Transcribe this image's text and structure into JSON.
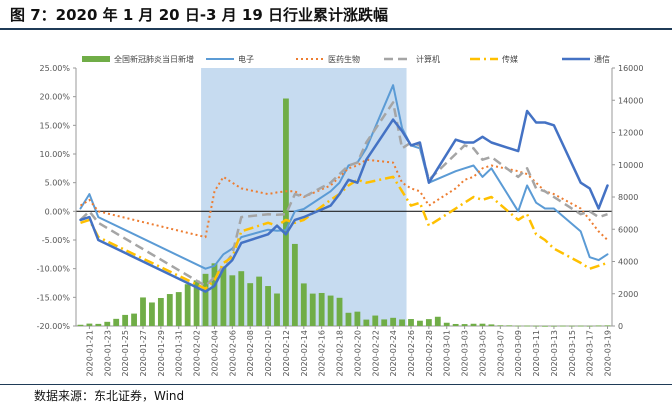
{
  "figure": {
    "title": "图 7：2020 年 1 月 20 日-3 月 19 日行业累计涨跌幅",
    "source": "数据来源：东北证券，Wind"
  },
  "chart_data": {
    "type": "line",
    "title": "图 7：2020 年 1 月 20 日-3 月 19 日行业累计涨跌幅",
    "x_tick_labels": [
      "2020-01-21",
      "2020-01-23",
      "2020-01-25",
      "2020-01-27",
      "2020-01-29",
      "2020-01-31",
      "2020-02-02",
      "2020-02-04",
      "2020-02-06",
      "2020-02-08",
      "2020-02-10",
      "2020-02-12",
      "2020-02-14",
      "2020-02-16",
      "2020-02-18",
      "2020-02-20",
      "2020-02-22",
      "2020-02-24",
      "2020-02-26",
      "2020-02-28",
      "2020-03-01",
      "2020-03-03",
      "2020-03-05",
      "2020-03-07",
      "2020-03-09",
      "2020-03-11",
      "2020-03-13",
      "2020-03-15",
      "2020-03-17",
      "2020-03-19"
    ],
    "x_start": "2020-01-20",
    "x_end": "2020-03-19",
    "y_left": {
      "ylim": [
        -20,
        25
      ],
      "ticks": [
        -20,
        -15,
        -10,
        -5,
        0,
        5,
        10,
        15,
        20,
        25
      ],
      "unit": "%"
    },
    "y_right": {
      "ylim": [
        0,
        16000
      ],
      "ticks": [
        0,
        2000,
        4000,
        6000,
        8000,
        10000,
        12000,
        14000,
        16000
      ]
    },
    "highlight": {
      "from": "2020-02-03",
      "to": "2020-02-25",
      "color": "#c6dbf0"
    },
    "bar_series": {
      "name": "全国新冠肺炎当日新增",
      "color": "#70ad47",
      "axis": "right",
      "points": [
        [
          "2020-01-20",
          77
        ],
        [
          "2020-01-21",
          149
        ],
        [
          "2020-01-22",
          131
        ],
        [
          "2020-01-23",
          259
        ],
        [
          "2020-01-24",
          444
        ],
        [
          "2020-01-25",
          688
        ],
        [
          "2020-01-26",
          769
        ],
        [
          "2020-01-27",
          1771
        ],
        [
          "2020-01-28",
          1459
        ],
        [
          "2020-01-29",
          1737
        ],
        [
          "2020-01-30",
          1982
        ],
        [
          "2020-01-31",
          2102
        ],
        [
          "2020-02-01",
          2590
        ],
        [
          "2020-02-02",
          2829
        ],
        [
          "2020-02-03",
          3235
        ],
        [
          "2020-02-04",
          3887
        ],
        [
          "2020-02-05",
          3694
        ],
        [
          "2020-02-06",
          3143
        ],
        [
          "2020-02-07",
          3399
        ],
        [
          "2020-02-08",
          2656
        ],
        [
          "2020-02-09",
          3062
        ],
        [
          "2020-02-10",
          2478
        ],
        [
          "2020-02-11",
          2015
        ],
        [
          "2020-02-12",
          14108
        ],
        [
          "2020-02-13",
          5090
        ],
        [
          "2020-02-14",
          2641
        ],
        [
          "2020-02-15",
          2009
        ],
        [
          "2020-02-16",
          2048
        ],
        [
          "2020-02-17",
          1886
        ],
        [
          "2020-02-18",
          1749
        ],
        [
          "2020-02-19",
          820
        ],
        [
          "2020-02-20",
          889
        ],
        [
          "2020-02-21",
          397
        ],
        [
          "2020-02-22",
          648
        ],
        [
          "2020-02-23",
          409
        ],
        [
          "2020-02-24",
          508
        ],
        [
          "2020-02-25",
          406
        ],
        [
          "2020-02-26",
          433
        ],
        [
          "2020-02-27",
          327
        ],
        [
          "2020-02-28",
          427
        ],
        [
          "2020-02-29",
          573
        ],
        [
          "2020-03-01",
          202
        ],
        [
          "2020-03-02",
          125
        ],
        [
          "2020-03-03",
          119
        ],
        [
          "2020-03-04",
          139
        ],
        [
          "2020-03-05",
          143
        ],
        [
          "2020-03-06",
          99
        ],
        [
          "2020-03-07",
          44
        ],
        [
          "2020-03-08",
          40
        ],
        [
          "2020-03-09",
          19
        ],
        [
          "2020-03-10",
          24
        ],
        [
          "2020-03-11",
          15
        ],
        [
          "2020-03-12",
          8
        ],
        [
          "2020-03-13",
          11
        ],
        [
          "2020-03-14",
          20
        ],
        [
          "2020-03-15",
          16
        ],
        [
          "2020-03-16",
          21
        ],
        [
          "2020-03-17",
          13
        ],
        [
          "2020-03-18",
          34
        ],
        [
          "2020-03-19",
          39
        ]
      ]
    },
    "line_series": [
      {
        "name": "电子",
        "color": "#5b9bd5",
        "dash": "",
        "width": 2,
        "points": [
          [
            "2020-01-20",
            0.5
          ],
          [
            "2020-01-21",
            3.0
          ],
          [
            "2020-01-22",
            -1.0
          ],
          [
            "2020-02-03",
            -10.0
          ],
          [
            "2020-02-04",
            -9.5
          ],
          [
            "2020-02-05",
            -7.5
          ],
          [
            "2020-02-06",
            -6.5
          ],
          [
            "2020-02-07",
            -4.5
          ],
          [
            "2020-02-10",
            -3.2
          ],
          [
            "2020-02-11",
            -3.4
          ],
          [
            "2020-02-12",
            -3.3
          ],
          [
            "2020-02-13",
            0.0
          ],
          [
            "2020-02-14",
            0.4
          ],
          [
            "2020-02-17",
            3.5
          ],
          [
            "2020-02-18",
            5.0
          ],
          [
            "2020-02-19",
            8.0
          ],
          [
            "2020-02-20",
            8.5
          ],
          [
            "2020-02-21",
            11.0
          ],
          [
            "2020-02-24",
            22.0
          ],
          [
            "2020-02-25",
            14.5
          ],
          [
            "2020-02-26",
            11.5
          ],
          [
            "2020-02-27",
            11.0
          ],
          [
            "2020-02-28",
            5.0
          ],
          [
            "2020-03-02",
            7.0
          ],
          [
            "2020-03-03",
            7.5
          ],
          [
            "2020-03-04",
            8.0
          ],
          [
            "2020-03-05",
            6.0
          ],
          [
            "2020-03-06",
            7.5
          ],
          [
            "2020-03-09",
            0.0
          ],
          [
            "2020-03-10",
            4.5
          ],
          [
            "2020-03-11",
            1.5
          ],
          [
            "2020-03-12",
            0.5
          ],
          [
            "2020-03-13",
            0.5
          ],
          [
            "2020-03-16",
            -3.5
          ],
          [
            "2020-03-17",
            -8.0
          ],
          [
            "2020-03-18",
            -8.5
          ],
          [
            "2020-03-19",
            -7.5
          ]
        ]
      },
      {
        "name": "医药生物",
        "color": "#ed7d31",
        "dash": "2 3",
        "width": 2,
        "points": [
          [
            "2020-01-20",
            1.0
          ],
          [
            "2020-01-21",
            2.0
          ],
          [
            "2020-01-22",
            0.0
          ],
          [
            "2020-02-03",
            -4.5
          ],
          [
            "2020-02-04",
            3.5
          ],
          [
            "2020-02-05",
            6.0
          ],
          [
            "2020-02-06",
            5.0
          ],
          [
            "2020-02-07",
            4.0
          ],
          [
            "2020-02-10",
            3.0
          ],
          [
            "2020-02-11",
            3.3
          ],
          [
            "2020-02-12",
            3.5
          ],
          [
            "2020-02-13",
            3.5
          ],
          [
            "2020-02-14",
            2.5
          ],
          [
            "2020-02-17",
            4.5
          ],
          [
            "2020-02-18",
            6.0
          ],
          [
            "2020-02-19",
            7.5
          ],
          [
            "2020-02-20",
            8.0
          ],
          [
            "2020-02-21",
            9.0
          ],
          [
            "2020-02-24",
            8.5
          ],
          [
            "2020-02-25",
            5.0
          ],
          [
            "2020-02-26",
            4.0
          ],
          [
            "2020-02-27",
            3.5
          ],
          [
            "2020-02-28",
            1.0
          ],
          [
            "2020-03-02",
            4.0
          ],
          [
            "2020-03-03",
            5.5
          ],
          [
            "2020-03-04",
            6.0
          ],
          [
            "2020-03-05",
            7.5
          ],
          [
            "2020-03-06",
            8.0
          ],
          [
            "2020-03-09",
            7.0
          ],
          [
            "2020-03-10",
            6.5
          ],
          [
            "2020-03-11",
            5.0
          ],
          [
            "2020-03-12",
            3.5
          ],
          [
            "2020-03-13",
            3.0
          ],
          [
            "2020-03-16",
            0.5
          ],
          [
            "2020-03-17",
            -1.5
          ],
          [
            "2020-03-18",
            -3.5
          ],
          [
            "2020-03-19",
            -5.0
          ]
        ]
      },
      {
        "name": "计算机",
        "color": "#a5a5a5",
        "dash": "9 5",
        "width": 2.5,
        "points": [
          [
            "2020-01-20",
            -1.5
          ],
          [
            "2020-01-21",
            0.0
          ],
          [
            "2020-01-22",
            -2.0
          ],
          [
            "2020-02-03",
            -13.0
          ],
          [
            "2020-02-04",
            -11.5
          ],
          [
            "2020-02-05",
            -9.5
          ],
          [
            "2020-02-06",
            -7.5
          ],
          [
            "2020-02-07",
            -1.0
          ],
          [
            "2020-02-10",
            -0.5
          ],
          [
            "2020-02-11",
            -0.6
          ],
          [
            "2020-02-12",
            -0.5
          ],
          [
            "2020-02-13",
            3.0
          ],
          [
            "2020-02-14",
            2.5
          ],
          [
            "2020-02-17",
            5.0
          ],
          [
            "2020-02-18",
            6.5
          ],
          [
            "2020-02-19",
            8.0
          ],
          [
            "2020-02-20",
            8.5
          ],
          [
            "2020-02-21",
            12.0
          ],
          [
            "2020-02-24",
            19.0
          ],
          [
            "2020-02-25",
            11.0
          ],
          [
            "2020-02-26",
            12.0
          ],
          [
            "2020-02-27",
            11.5
          ],
          [
            "2020-02-28",
            5.5
          ],
          [
            "2020-03-02",
            10.0
          ],
          [
            "2020-03-03",
            11.5
          ],
          [
            "2020-03-04",
            11.0
          ],
          [
            "2020-03-05",
            9.0
          ],
          [
            "2020-03-06",
            9.5
          ],
          [
            "2020-03-09",
            6.0
          ],
          [
            "2020-03-10",
            7.5
          ],
          [
            "2020-03-11",
            4.0
          ],
          [
            "2020-03-12",
            3.5
          ],
          [
            "2020-03-13",
            2.5
          ],
          [
            "2020-03-16",
            -0.5
          ],
          [
            "2020-03-17",
            0.0
          ],
          [
            "2020-03-18",
            -1.0
          ],
          [
            "2020-03-19",
            -0.5
          ]
        ]
      },
      {
        "name": "传媒",
        "color": "#ffc000",
        "dash": "10 4 2 4",
        "width": 2.5,
        "points": [
          [
            "2020-01-20",
            -2.0
          ],
          [
            "2020-01-21",
            -1.5
          ],
          [
            "2020-01-22",
            -4.5
          ],
          [
            "2020-02-03",
            -13.5
          ],
          [
            "2020-02-04",
            -12.0
          ],
          [
            "2020-02-05",
            -9.0
          ],
          [
            "2020-02-06",
            -8.0
          ],
          [
            "2020-02-07",
            -3.5
          ],
          [
            "2020-02-10",
            -2.0
          ],
          [
            "2020-02-11",
            -2.5
          ],
          [
            "2020-02-12",
            -1.5
          ],
          [
            "2020-02-13",
            -2.0
          ],
          [
            "2020-02-14",
            -1.5
          ],
          [
            "2020-02-17",
            2.0
          ],
          [
            "2020-02-18",
            3.0
          ],
          [
            "2020-02-19",
            4.5
          ],
          [
            "2020-02-20",
            5.5
          ],
          [
            "2020-02-21",
            5.0
          ],
          [
            "2020-02-24",
            6.0
          ],
          [
            "2020-02-25",
            3.5
          ],
          [
            "2020-02-26",
            1.0
          ],
          [
            "2020-02-27",
            1.5
          ],
          [
            "2020-02-28",
            -2.5
          ],
          [
            "2020-03-02",
            0.5
          ],
          [
            "2020-03-03",
            1.5
          ],
          [
            "2020-03-04",
            2.5
          ],
          [
            "2020-03-05",
            2.0
          ],
          [
            "2020-03-06",
            2.5
          ],
          [
            "2020-03-09",
            -1.5
          ],
          [
            "2020-03-10",
            -0.5
          ],
          [
            "2020-03-11",
            -4.0
          ],
          [
            "2020-03-12",
            -5.0
          ],
          [
            "2020-03-13",
            -6.5
          ],
          [
            "2020-03-16",
            -9.0
          ],
          [
            "2020-03-17",
            -10.0
          ],
          [
            "2020-03-18",
            -9.5
          ],
          [
            "2020-03-19",
            -9.0
          ]
        ]
      },
      {
        "name": "通信",
        "color": "#4472c4",
        "dash": "",
        "width": 2.5,
        "points": [
          [
            "2020-01-20",
            -1.5
          ],
          [
            "2020-01-21",
            -1.0
          ],
          [
            "2020-01-22",
            -5.0
          ],
          [
            "2020-02-03",
            -14.0
          ],
          [
            "2020-02-04",
            -13.0
          ],
          [
            "2020-02-05",
            -10.0
          ],
          [
            "2020-02-06",
            -8.5
          ],
          [
            "2020-02-07",
            -5.5
          ],
          [
            "2020-02-10",
            -4.0
          ],
          [
            "2020-02-11",
            -2.5
          ],
          [
            "2020-02-12",
            -4.0
          ],
          [
            "2020-02-13",
            -1.5
          ],
          [
            "2020-02-14",
            -1.0
          ],
          [
            "2020-02-17",
            1.0
          ],
          [
            "2020-02-18",
            3.0
          ],
          [
            "2020-02-19",
            5.5
          ],
          [
            "2020-02-20",
            5.0
          ],
          [
            "2020-02-21",
            9.0
          ],
          [
            "2020-02-24",
            16.0
          ],
          [
            "2020-02-25",
            14.0
          ],
          [
            "2020-02-26",
            11.5
          ],
          [
            "2020-02-27",
            12.0
          ],
          [
            "2020-02-28",
            5.0
          ],
          [
            "2020-03-02",
            12.5
          ],
          [
            "2020-03-03",
            12.0
          ],
          [
            "2020-03-04",
            12.0
          ],
          [
            "2020-03-05",
            13.0
          ],
          [
            "2020-03-06",
            12.0
          ],
          [
            "2020-03-09",
            10.5
          ],
          [
            "2020-03-10",
            17.5
          ],
          [
            "2020-03-11",
            15.5
          ],
          [
            "2020-03-12",
            15.5
          ],
          [
            "2020-03-13",
            15.0
          ],
          [
            "2020-03-16",
            5.0
          ],
          [
            "2020-03-17",
            4.0
          ],
          [
            "2020-03-18",
            0.5
          ],
          [
            "2020-03-19",
            4.5
          ]
        ]
      }
    ]
  }
}
